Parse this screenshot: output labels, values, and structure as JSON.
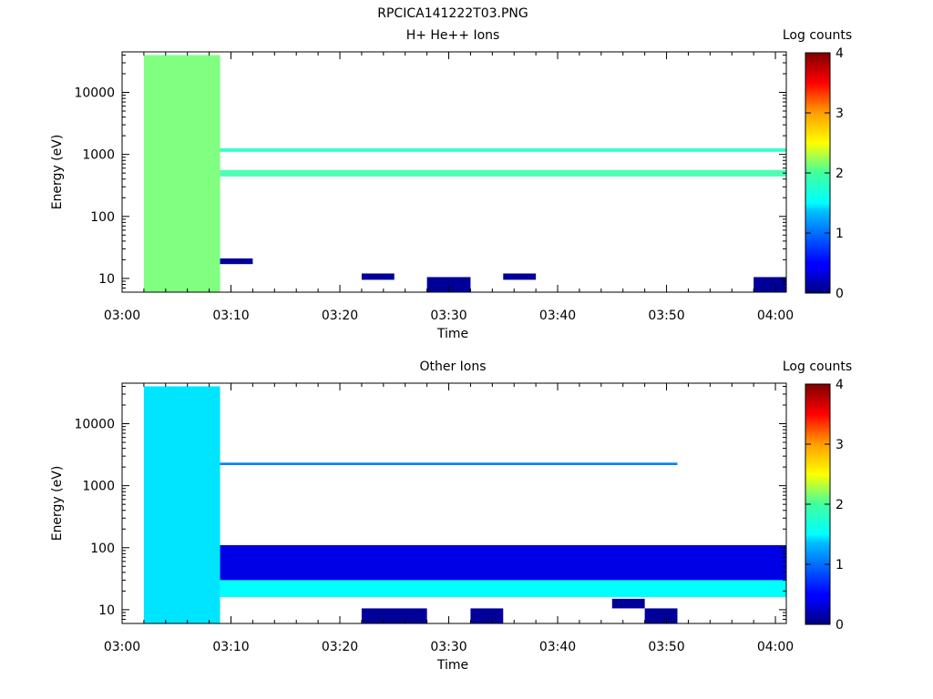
{
  "figure": {
    "title": "RPCICA141222T03.PNG"
  },
  "chart_data": [
    {
      "type": "heatmap",
      "title": "H+ He++ Ions",
      "xlabel": "Time",
      "ylabel": "Energy (eV)",
      "colorbar_label": "Log counts",
      "y_scale": "log",
      "xlim": [
        "03:00",
        "04:01"
      ],
      "ylim": [
        6,
        45000
      ],
      "x_ticks": [
        "03:00",
        "03:10",
        "03:20",
        "03:30",
        "03:40",
        "03:50",
        "04:00"
      ],
      "y_ticks": [
        "10",
        "100",
        "1000",
        "10000"
      ],
      "colorbar_ticks": [
        "0",
        "1",
        "2",
        "3",
        "4"
      ],
      "colorbar_range": [
        0,
        4
      ],
      "time_bins": [
        "03:02",
        "03:06",
        "03:09",
        "03:12",
        "03:16",
        "03:19",
        "03:22",
        "03:25",
        "03:28",
        "03:32",
        "03:35",
        "03:38",
        "03:41",
        "03:45",
        "03:48",
        "03:51",
        "03:54",
        "03:58"
      ],
      "cells": [
        {
          "t0": "03:02",
          "t1": "03:09",
          "e0": 6,
          "e1": 40000,
          "v": 2.0,
          "note": "continuous"
        },
        {
          "t0": "03:09",
          "t1": "04:01",
          "e0": 1100,
          "e1": 1250,
          "v": 1.7
        },
        {
          "t0": "03:09",
          "t1": "04:01",
          "e0": 440,
          "e1": 560,
          "v": 1.8
        },
        {
          "t0": "03:09",
          "t1": "03:12",
          "e0": 17,
          "e1": 21,
          "v": 0.1
        },
        {
          "t0": "03:22",
          "t1": "03:25",
          "e0": 9.5,
          "e1": 12,
          "v": 0.1
        },
        {
          "t0": "03:28",
          "t1": "03:32",
          "e0": 6,
          "e1": 10.5,
          "v": 0.1
        },
        {
          "t0": "03:35",
          "t1": "03:38",
          "e0": 9.5,
          "e1": 12,
          "v": 0.1
        },
        {
          "t0": "03:58",
          "t1": "04:01",
          "e0": 6,
          "e1": 10.5,
          "v": 0.1
        }
      ]
    },
    {
      "type": "heatmap",
      "title": "Other Ions",
      "xlabel": "Time",
      "ylabel": "Energy (eV)",
      "colorbar_label": "Log counts",
      "y_scale": "log",
      "xlim": [
        "03:00",
        "04:01"
      ],
      "ylim": [
        6,
        45000
      ],
      "x_ticks": [
        "03:00",
        "03:10",
        "03:20",
        "03:30",
        "03:40",
        "03:50",
        "04:00"
      ],
      "y_ticks": [
        "10",
        "100",
        "1000",
        "10000"
      ],
      "colorbar_ticks": [
        "0",
        "1",
        "2",
        "3",
        "4"
      ],
      "colorbar_range": [
        0,
        4
      ],
      "cells": [
        {
          "t0": "03:02",
          "t1": "03:09",
          "e0": 6,
          "e1": 40000,
          "v": 1.4,
          "note": "continuous"
        },
        {
          "t0": "03:09",
          "t1": "04:01",
          "e0": 16,
          "e1": 30,
          "v": 1.5
        },
        {
          "t0": "03:09",
          "t1": "04:01",
          "e0": 30,
          "e1": 110,
          "v": 0.4
        },
        {
          "t0": "03:09",
          "t1": "03:51",
          "e0": 2150,
          "e1": 2350,
          "v": 1.0
        },
        {
          "t0": "03:22",
          "t1": "03:28",
          "e0": 6,
          "e1": 10.5,
          "v": 0.1
        },
        {
          "t0": "03:32",
          "t1": "03:35",
          "e0": 6,
          "e1": 10.5,
          "v": 0.1
        },
        {
          "t0": "03:45",
          "t1": "03:48",
          "e0": 10.5,
          "e1": 15,
          "v": 0.1
        },
        {
          "t0": "03:48",
          "t1": "03:51",
          "e0": 6,
          "e1": 10.5,
          "v": 0.1
        }
      ]
    }
  ]
}
